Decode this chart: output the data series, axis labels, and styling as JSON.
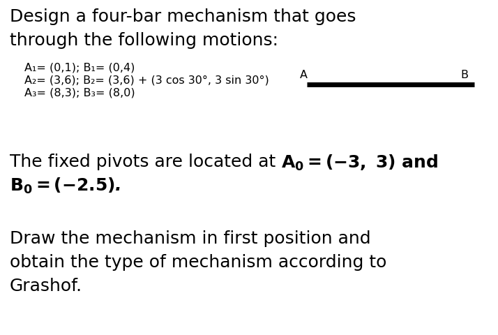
{
  "title_line1": "Design a four-bar mechanism that goes",
  "title_line2": "through the following motions:",
  "bullet1": "A₁= (0,1); B₁= (0,4)",
  "bullet2": "A₂= (3,6); B₂= (3,6) + (3 cos 30°, 3 sin 30°)",
  "bullet3": "A₃= (8,3); B₃= (8,0)",
  "label_A": "A",
  "label_B": "B",
  "draw_line1": "Draw the mechanism in first position and",
  "draw_line2": "obtain the type of mechanism according to",
  "draw_line3": "Grashof.",
  "bg_color": "#ffffff",
  "text_color": "#000000",
  "title_fontsize": 18,
  "small_fontsize": 11.5,
  "body_fontsize": 18
}
